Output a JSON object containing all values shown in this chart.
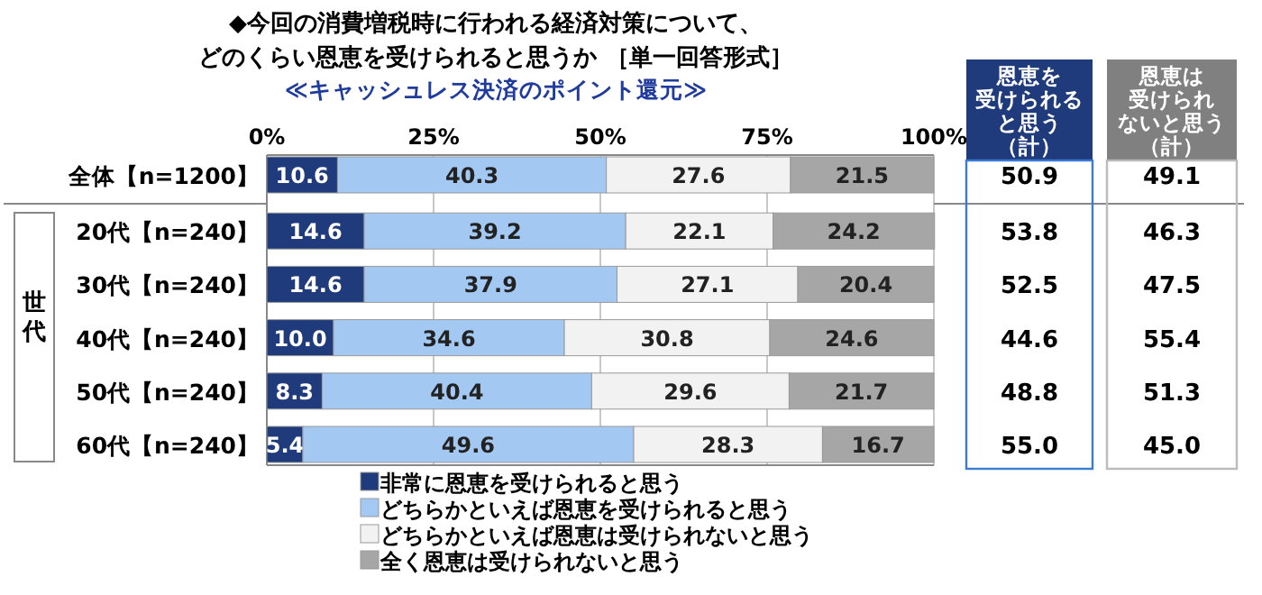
{
  "chart_data": {
    "type": "bar",
    "orientation": "horizontal",
    "stacked": true,
    "title": "◆今回の消費増税時に行われる経済対策について、どのくらい恩恵を受けられると思うか ［単一回答形式］",
    "subtitle": "≪キャッシュレス決済のポイント還元≫",
    "categories": [
      "全体【n=1200】",
      "20代【n=240】",
      "30代【n=240】",
      "40代【n=240】",
      "50代【n=240】",
      "60代【n=240】"
    ],
    "series": [
      {
        "name": "非常に恩恵を受けられると思う",
        "color": "#1f3b7b",
        "values": [
          10.6,
          14.6,
          14.6,
          10.0,
          8.3,
          5.4
        ],
        "value_labels": [
          "10.6",
          "14.6",
          "14.6",
          "10.0",
          "8.3",
          "5.4"
        ]
      },
      {
        "name": "どちらかといえば恩恵を受けられると思う",
        "color": "#a3c8f2",
        "values": [
          40.3,
          39.2,
          37.9,
          34.6,
          40.4,
          49.6
        ],
        "value_labels": [
          "40.3",
          "39.2",
          "37.9",
          "34.6",
          "40.4",
          "49.6"
        ]
      },
      {
        "name": "どちらかといえば恩恵は受けられないと思う",
        "color": "#f2f2f2",
        "values": [
          27.6,
          22.1,
          27.1,
          30.8,
          29.6,
          28.3
        ],
        "value_labels": [
          "27.6",
          "22.1",
          "27.1",
          "30.8",
          "29.6",
          "28.3"
        ]
      },
      {
        "name": "全く恩恵は受けられないと思う",
        "color": "#a6a6a6",
        "values": [
          21.5,
          24.2,
          20.4,
          24.6,
          21.7,
          16.7
        ],
        "value_labels": [
          "21.5",
          "24.2",
          "20.4",
          "24.6",
          "21.7",
          "16.7"
        ]
      }
    ],
    "xlim": [
      0,
      100
    ],
    "xticks": [
      {
        "value": 0,
        "label": "0%"
      },
      {
        "value": 25,
        "label": "25%"
      },
      {
        "value": 50,
        "label": "50%"
      },
      {
        "value": 75,
        "label": "75%"
      },
      {
        "value": 100,
        "label": "100%"
      }
    ],
    "grid": "x",
    "legend": "bottom",
    "annotations": [
      "世代",
      "恩恵を",
      "受けられる",
      "と思う",
      "（計）",
      "恩恵は",
      "受けられ",
      "ないと思う",
      "（計）",
      "50.9",
      "53.8",
      "52.5",
      "44.6",
      "48.8",
      "55.0",
      "49.1",
      "46.3",
      "47.5",
      "55.4",
      "51.3",
      "45.0"
    ]
  }
}
